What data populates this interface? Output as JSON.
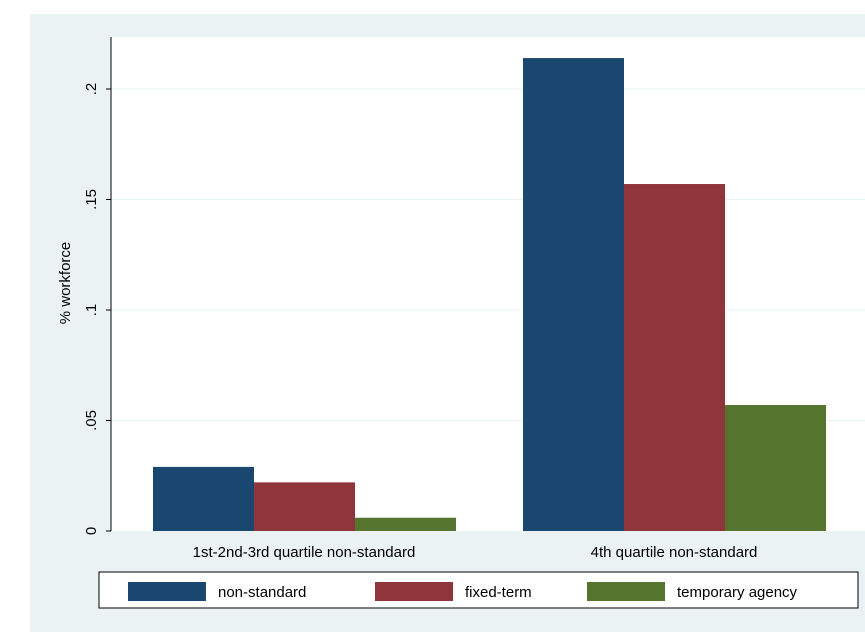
{
  "chart_data": {
    "type": "bar",
    "ylabel": "% workforce",
    "ylim": [
      0,
      0.225
    ],
    "yticks": [
      {
        "value": 0,
        "label": "0"
      },
      {
        "value": 0.05,
        "label": ".05"
      },
      {
        "value": 0.1,
        "label": ".1"
      },
      {
        "value": 0.15,
        "label": ".15"
      },
      {
        "value": 0.2,
        "label": ".2"
      }
    ],
    "categories": [
      "1st-2nd-3rd quartile non-standard",
      "4th quartile non-standard"
    ],
    "series": [
      {
        "name": "non-standard",
        "color": "#1a476f",
        "values": [
          0.029,
          0.214
        ]
      },
      {
        "name": "fixed-term",
        "color": "#90353b",
        "values": [
          0.022,
          0.157
        ]
      },
      {
        "name": "temporary agency",
        "color": "#55752f",
        "values": [
          0.006,
          0.057
        ]
      }
    ],
    "grid": true,
    "legend_position": "bottom"
  }
}
